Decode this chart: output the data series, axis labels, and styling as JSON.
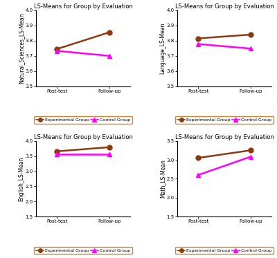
{
  "title": "LS-Means for Group by Evaluation",
  "plots": [
    {
      "ylabel": "Natural_Sciences_LS-Mean",
      "ylim": [
        3.5,
        4.0
      ],
      "yticks": [
        3.5,
        3.6,
        3.7,
        3.8,
        3.9,
        4.0
      ],
      "exp_values": [
        3.745,
        3.855
      ],
      "ctrl_values": [
        3.733,
        3.7
      ]
    },
    {
      "ylabel": "Language_LS-Mean",
      "ylim": [
        3.5,
        4.0
      ],
      "yticks": [
        3.5,
        3.6,
        3.7,
        3.8,
        3.9,
        4.0
      ],
      "exp_values": [
        3.815,
        3.84
      ],
      "ctrl_values": [
        3.778,
        3.748
      ]
    },
    {
      "ylabel": "English_LS-Mean",
      "ylim": [
        1.5,
        4.0
      ],
      "yticks": [
        1.5,
        2.0,
        2.5,
        3.0,
        3.5,
        4.0
      ],
      "exp_values": [
        3.655,
        3.79
      ],
      "ctrl_values": [
        3.548,
        3.548
      ]
    },
    {
      "ylabel": "Math_LS-Mean",
      "ylim": [
        1.5,
        3.5
      ],
      "yticks": [
        1.5,
        2.0,
        2.5,
        3.0,
        3.5
      ],
      "exp_values": [
        3.05,
        3.25
      ],
      "ctrl_values": [
        2.6,
        3.08
      ]
    }
  ],
  "xticklabels": [
    "Post-test",
    "Follow-up"
  ],
  "exp_color": "#8B3A0F",
  "ctrl_color": "#FF00FF",
  "legend_exp": "Experimental Group",
  "legend_ctrl": "Control Group",
  "legend_border_color": "#CC6600",
  "marker_size": 5,
  "linewidth": 1.8,
  "title_fontsize": 6.0,
  "label_fontsize": 5.5,
  "tick_fontsize": 5.0,
  "legend_fontsize": 4.5
}
